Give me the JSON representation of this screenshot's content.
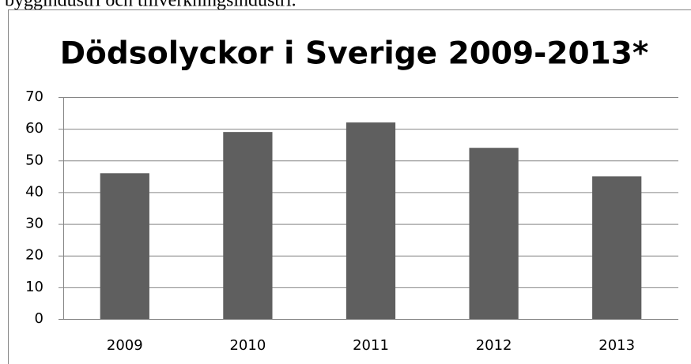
{
  "document_text": "byggindustri och tillverkningsindustri.",
  "chart_data": {
    "type": "bar",
    "title": "Dödsolyckor i Sverige 2009-2013*",
    "categories": [
      "2009",
      "2010",
      "2011",
      "2012",
      "2013"
    ],
    "values": [
      46,
      59,
      62,
      54,
      45
    ],
    "color": "#5f5f5f",
    "ylim": [
      0,
      70
    ],
    "yticks": [
      0,
      10,
      20,
      30,
      40,
      50,
      60,
      70
    ],
    "grid": true
  }
}
